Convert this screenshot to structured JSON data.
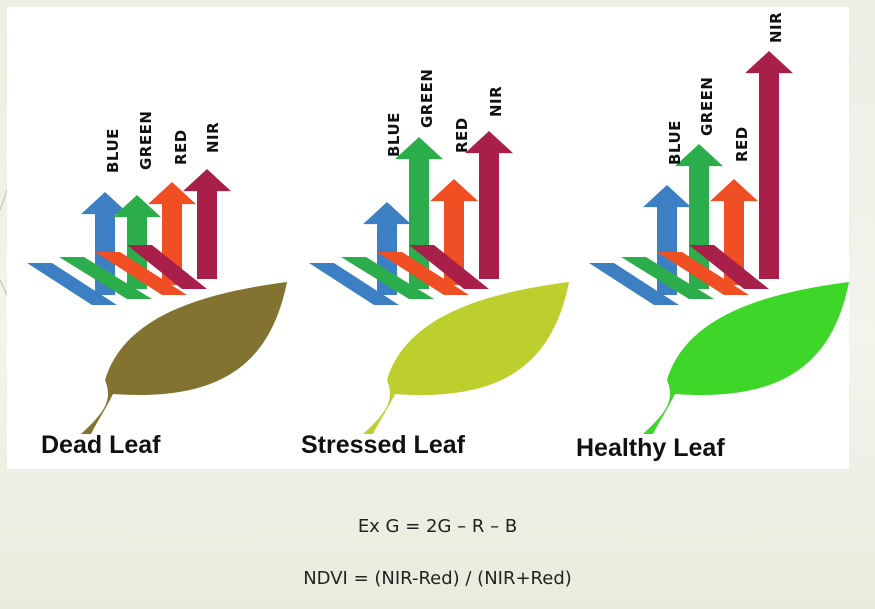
{
  "captions": {
    "dead": "Dead Leaf",
    "stressed": "Stressed Leaf",
    "healthy": "Healthy Leaf"
  },
  "bands": {
    "blue": "BLUE",
    "green": "GREEN",
    "red": "RED",
    "nir": "NIR"
  },
  "formulas": {
    "exg": "Ex G = 2G – R – B",
    "ndvi": "NDVI =  (NIR-Red) / (NIR+Red)"
  },
  "colors": {
    "blue": "#3c7fc3",
    "green": "#2cad4b",
    "red": "#f04e23",
    "nir": "#a8204a",
    "dead_leaf": "#827430",
    "stressed_leaf": "#bccf2c",
    "healthy_leaf": "#3ed628"
  }
}
